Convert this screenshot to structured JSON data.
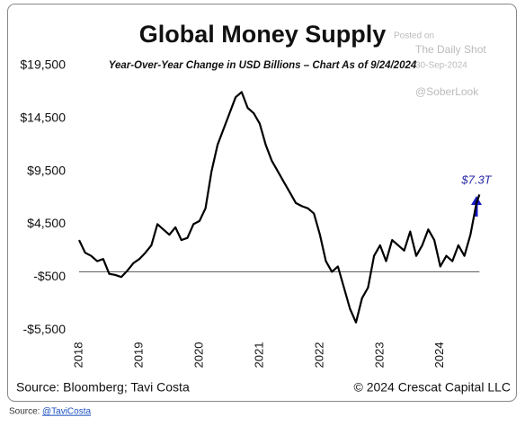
{
  "chart_data": {
    "type": "line",
    "title": "Global Money Supply",
    "subtitle": "Year-Over-Year Change in USD Billions – Chart As of 9/24/2024",
    "annotation": "$7.3T",
    "source": "Source: Bloomberg; Tavi Costa",
    "copyright": "© 2024 Crescat Capital LLC",
    "color": "#000000",
    "reference_line": 0,
    "x": [
      2018.0,
      2018.1,
      2018.2,
      2018.3,
      2018.4,
      2018.5,
      2018.6,
      2018.7,
      2018.8,
      2018.9,
      2019.0,
      2019.1,
      2019.2,
      2019.3,
      2019.4,
      2019.5,
      2019.6,
      2019.7,
      2019.8,
      2019.9,
      2020.0,
      2020.1,
      2020.2,
      2020.3,
      2020.4,
      2020.5,
      2020.6,
      2020.7,
      2020.8,
      2020.9,
      2021.0,
      2021.1,
      2021.2,
      2021.3,
      2021.4,
      2021.5,
      2021.6,
      2021.7,
      2021.8,
      2021.9,
      2022.0,
      2022.1,
      2022.2,
      2022.3,
      2022.4,
      2022.5,
      2022.6,
      2022.7,
      2022.8,
      2022.9,
      2023.0,
      2023.1,
      2023.2,
      2023.3,
      2023.4,
      2023.5,
      2023.6,
      2023.7,
      2023.8,
      2023.9,
      2024.0,
      2024.1,
      2024.2,
      2024.3,
      2024.4,
      2024.5,
      2024.6,
      2024.65
    ],
    "values": [
      3000,
      1800,
      1500,
      1000,
      1200,
      -200,
      -300,
      -500,
      100,
      800,
      1200,
      1800,
      2500,
      4500,
      4000,
      3500,
      4200,
      3000,
      3200,
      4500,
      4800,
      6000,
      9500,
      12000,
      13500,
      15000,
      16500,
      17000,
      15500,
      15000,
      14000,
      12000,
      10500,
      9500,
      8500,
      7500,
      6500,
      6200,
      6000,
      5500,
      3500,
      1000,
      0,
      500,
      -1500,
      -3500,
      -4800,
      -2500,
      -1500,
      1500,
      2500,
      1000,
      3000,
      2500,
      2000,
      3800,
      1500,
      2500,
      4000,
      3000,
      500,
      1500,
      1000,
      2500,
      1500,
      3500,
      6500,
      7300
    ],
    "xlim": [
      2018,
      2024.75
    ],
    "xticks": [
      2018,
      2019,
      2020,
      2021,
      2022,
      2023,
      2024
    ],
    "ylim": [
      -6600,
      20600
    ],
    "yticks": [
      {
        "value": -5500,
        "label": "-$5,500"
      },
      {
        "value": -500,
        "label": "-$500"
      },
      {
        "value": 4500,
        "label": "$4,500"
      },
      {
        "value": 9500,
        "label": "$9,500"
      },
      {
        "value": 14500,
        "label": "$14,500"
      },
      {
        "value": 19500,
        "label": "$19,500"
      }
    ]
  },
  "watermark": {
    "posted": "Posted on",
    "site": "The Daily Shot",
    "date": "30-Sep-2024",
    "handle": "@SoberLook"
  },
  "page_source": {
    "label": "Source:",
    "link": "@TaviCosta"
  }
}
